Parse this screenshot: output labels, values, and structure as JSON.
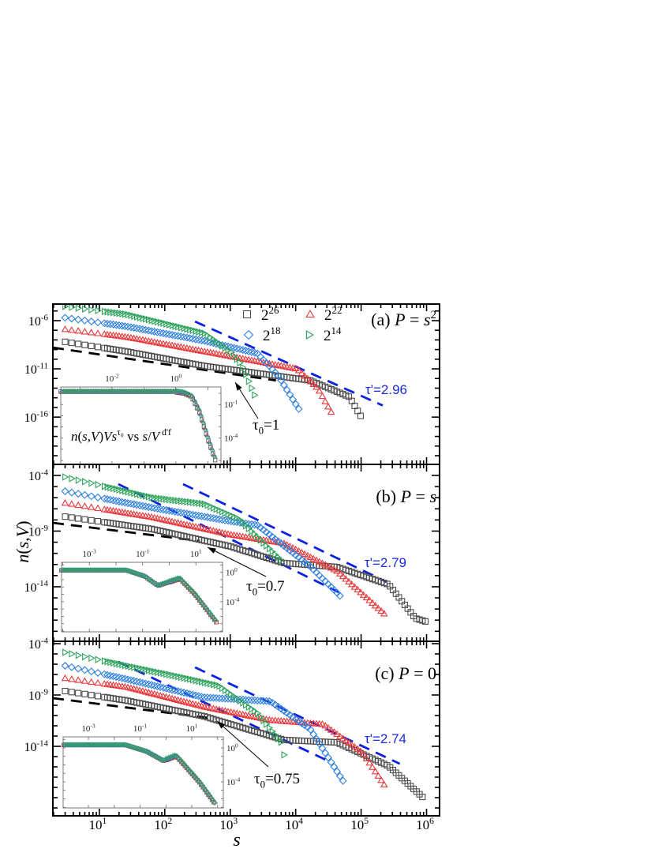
{
  "figure": {
    "ylabel": "*n*(*s*,*V*)",
    "xlabel": "*s*",
    "x_ticks": [
      10,
      100,
      1000,
      10000,
      100000,
      1000000
    ]
  },
  "legend": [
    {
      "name": "2^{26}",
      "marker": "square",
      "color": "#4d4d4d"
    },
    {
      "name": "2^{22}",
      "marker": "triangle-up",
      "color": "#e8383b"
    },
    {
      "name": "2^{18}",
      "marker": "diamond",
      "color": "#2f80e0"
    },
    {
      "name": "2^{14}",
      "marker": "triangle-right",
      "color": "#2ea35c"
    }
  ],
  "colors": {
    "fit_line": "#0b22e0",
    "reference_line": "#000000",
    "annotation_blue": "#1a2ae0"
  },
  "chart_data": [
    {
      "type": "scatter",
      "label": "(a) *P* = *s*^{2}",
      "log_x": true,
      "log_y": true,
      "xlim": [
        1.95,
        1580000
      ],
      "ylim": [
        1.26e-21,
        5.2e-05
      ],
      "y_ticks": [
        1e-06,
        1e-11,
        1e-16
      ],
      "series": [
        {
          "points": [
            [
              3,
              6.3e-09
            ],
            [
              26,
              6.3e-10
            ],
            [
              400,
              2e-11
            ],
            [
              16600,
              6.3e-13
            ],
            [
              66000,
              1.26e-14
            ],
            [
              105000,
              6.3e-17
            ]
          ]
        },
        {
          "points": [
            [
              3,
              1.26e-07
            ],
            [
              26,
              2e-08
            ],
            [
              400,
              6.3e-10
            ],
            [
              10500,
              1e-11
            ],
            [
              22000,
              8.9e-14
            ],
            [
              35000,
              3.2e-16
            ]
          ]
        },
        {
          "points": [
            [
              3,
              2e-06
            ],
            [
              26,
              2.5e-07
            ],
            [
              400,
              8e-09
            ],
            [
              2600,
              4e-10
            ],
            [
              5400,
              2e-12
            ],
            [
              11500,
              5e-16
            ]
          ]
        },
        {
          "points": [
            [
              3,
              3e-05
            ],
            [
              26,
              4.5e-06
            ],
            [
              400,
              5e-08
            ],
            [
              1000,
              6.3e-10
            ],
            [
              1500,
              2.5e-11
            ],
            [
              2600,
              4e-15
            ]
          ]
        }
      ],
      "lines": [
        {
          "kind": "reference",
          "points": [
            [
              1.95,
              1.6e-09
            ],
            [
              5000,
              6.3e-13
            ]
          ]
        },
        {
          "kind": "fit",
          "points": [
            [
              290,
              8e-07
            ],
            [
              214000,
              1.6e-15
            ]
          ]
        }
      ],
      "annotations": {
        "tau_prime": "τ'=2.96",
        "tau0": "τ_{0}=1"
      },
      "inset": {
        "label": "*n*(*s*,*V*)*Vs*^{τ₀}  vs  *s*/*V*^{ d'f}",
        "log_x": true,
        "log_y": true,
        "xlim": [
          0.00025,
          25.7
        ],
        "ylim": [
          4.5e-07,
          3.7
        ],
        "x_ticks": [
          0.01,
          1
        ],
        "y_ticks": [
          0.1,
          0.0001
        ],
        "curve": [
          [
            0.00025,
            1.5
          ],
          [
            1.0,
            1.5
          ],
          [
            1.8,
            1.2
          ],
          [
            3.1,
            0.6
          ],
          [
            5.5,
            0.023
          ],
          [
            10,
            0.0001
          ],
          [
            17,
            1.26e-06
          ]
        ]
      }
    },
    {
      "type": "scatter",
      "label": "(b) *P* = *s*",
      "log_x": true,
      "log_y": true,
      "xlim": [
        1.95,
        1580000
      ],
      "ylim": [
        1.26e-19,
        0.00098
      ],
      "y_ticks": [
        0.0001,
        1e-09,
        1e-14
      ],
      "series": [
        {
          "points": [
            [
              3,
              2e-08
            ],
            [
              65,
              1.5e-09
            ],
            [
              1000,
              4.2e-11
            ],
            [
              6600,
              1.35e-12
            ],
            [
              42700,
              5.9e-13
            ],
            [
              263000,
              1.6e-14
            ],
            [
              676000,
              1.45e-17
            ],
            [
              1050000,
              6.5e-18
            ]
          ]
        },
        {
          "points": [
            [
              3,
              3.3e-07
            ],
            [
              65,
              1.7e-08
            ],
            [
              1000,
              4.8e-10
            ],
            [
              6600,
              7.9e-11
            ],
            [
              42700,
              2.6e-13
            ],
            [
              245000,
              2.4e-17
            ]
          ]
        },
        {
          "points": [
            [
              3,
              3.8e-06
            ],
            [
              65,
              1.23e-07
            ],
            [
              1000,
              7.8e-09
            ],
            [
              2600,
              3.4e-09
            ],
            [
              16600,
              6.9e-13
            ],
            [
              52500,
              8.7e-16
            ]
          ]
        },
        {
          "points": [
            [
              3,
              7.2e-05
            ],
            [
              65,
              1e-06
            ],
            [
              400,
              2.8e-07
            ],
            [
              1350,
              1.26e-08
            ],
            [
              6600,
              1.35e-12
            ]
          ]
        }
      ],
      "lines": [
        {
          "kind": "reference",
          "points": [
            [
              1.95,
              5.5e-09
            ],
            [
              340,
              1.3e-10
            ]
          ]
        },
        {
          "kind": "fit",
          "points": [
            [
              19.5,
              1.66e-05
            ],
            [
              45700,
              3.2e-15
            ]
          ]
        },
        {
          "kind": "fit",
          "points": [
            [
              190,
              1.66e-05
            ],
            [
              245000,
              2.7e-14
            ]
          ]
        }
      ],
      "annotations": {
        "tau_prime": "τ'=2.79",
        "tau0": "τ_{0}=0.7"
      },
      "inset": {
        "log_x": true,
        "log_y": true,
        "xlim": [
          9.1e-05,
          100
        ],
        "ylim": [
          7.9e-09,
          23
        ],
        "x_ticks": [
          0.001,
          0.1,
          10
        ],
        "y_ticks": [
          1,
          0.0001
        ],
        "curve": [
          [
            9e-05,
            2
          ],
          [
            0.025,
            2
          ],
          [
            0.12,
            0.3
          ],
          [
            0.38,
            0.016
          ],
          [
            2.5,
            0.16
          ],
          [
            9.3,
            0.0011
          ],
          [
            63,
            1.4e-07
          ]
        ]
      }
    },
    {
      "type": "scatter",
      "label": "(c) *P* = 0",
      "log_x": true,
      "log_y": true,
      "xlim": [
        1.95,
        1580000
      ],
      "ylim": [
        1.7e-21,
        0.00017
      ],
      "y_ticks": [
        0.0001,
        1e-09,
        1e-14
      ],
      "series": [
        {
          "points": [
            [
              3,
              2.4e-09
            ],
            [
              26,
              2.9e-10
            ],
            [
              400,
              8.3e-12
            ],
            [
              6600,
              4.2e-14
            ],
            [
              42700,
              2.4e-14
            ],
            [
              263000,
              1.2e-16
            ],
            [
              890000,
              1e-19
            ]
          ]
        },
        {
          "points": [
            [
              3,
              4.2e-08
            ],
            [
              26,
              5.9e-09
            ],
            [
              400,
              7e-11
            ],
            [
              4100,
              3.5e-12
            ],
            [
              26300,
              1.4e-12
            ],
            [
              105000,
              2.4e-15
            ],
            [
              245000,
              8.3e-19
            ]
          ]
        },
        {
          "points": [
            [
              3,
              7e-07
            ],
            [
              26,
              3.5e-08
            ],
            [
              400,
              5.9e-10
            ],
            [
              4100,
              2.4e-10
            ],
            [
              16600,
              4.9e-13
            ],
            [
              56000,
              2.4e-18
            ]
          ]
        },
        {
          "points": [
            [
              3,
              1.4e-05
            ],
            [
              26,
              7e-07
            ],
            [
              166,
              5.9e-08
            ],
            [
              660,
              8.3e-09
            ],
            [
              2600,
              1.7e-11
            ],
            [
              6000,
              2.5e-14
            ],
            [
              6900,
              5e-16
            ]
          ]
        }
      ],
      "lines": [
        {
          "kind": "reference",
          "points": [
            [
              1.95,
              4.9e-10
            ],
            [
              590,
              4.9e-12
            ]
          ]
        },
        {
          "kind": "fit",
          "points": [
            [
              19.5,
              1.7e-06
            ],
            [
              28800,
              4.9e-16
            ]
          ]
        },
        {
          "kind": "fit",
          "points": [
            [
              290,
              4.9e-07
            ],
            [
              390000,
              2e-16
            ]
          ]
        }
      ],
      "annotations": {
        "tau_prime": "τ'=2.74",
        "tau0": "τ_{0}=0.75"
      },
      "inset": {
        "log_x": true,
        "log_y": true,
        "xlim": [
          0.000105,
          166
        ],
        "ylim": [
          8.5e-08,
          20
        ],
        "x_ticks": [
          0.001,
          0.1,
          10
        ],
        "y_ticks": [
          1,
          0.0001
        ],
        "curve": [
          [
            0.00011,
            2.3
          ],
          [
            0.028,
            2.3
          ],
          [
            0.18,
            0.4
          ],
          [
            0.8,
            0.032
          ],
          [
            2.5,
            0.13
          ],
          [
            20,
            0.0001
          ],
          [
            83,
            2.5e-07
          ]
        ]
      }
    }
  ]
}
